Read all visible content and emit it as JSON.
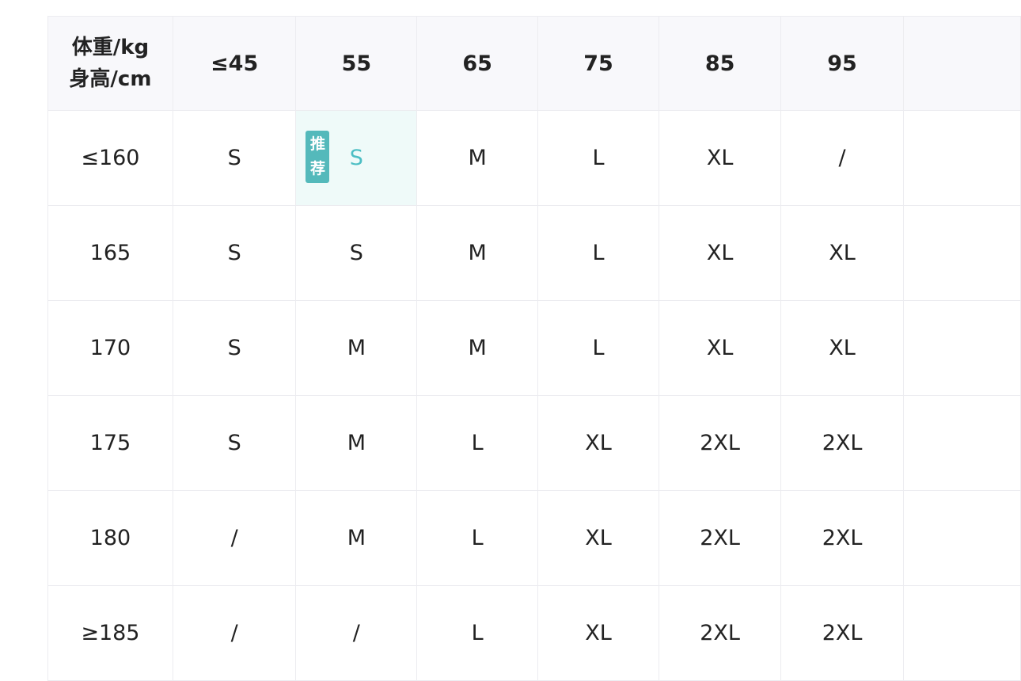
{
  "table": {
    "corner": [
      "体重/kg",
      "身高/cm"
    ],
    "weights": [
      "≤45",
      "55",
      "65",
      "75",
      "85",
      "95",
      ""
    ],
    "rows": [
      {
        "height": "≤160",
        "sizes": [
          "S",
          "S",
          "M",
          "L",
          "XL",
          "/",
          ""
        ]
      },
      {
        "height": "165",
        "sizes": [
          "S",
          "S",
          "M",
          "L",
          "XL",
          "XL",
          ""
        ]
      },
      {
        "height": "170",
        "sizes": [
          "S",
          "M",
          "M",
          "L",
          "XL",
          "XL",
          ""
        ]
      },
      {
        "height": "175",
        "sizes": [
          "S",
          "M",
          "L",
          "XL",
          "2XL",
          "2XL",
          ""
        ]
      },
      {
        "height": "180",
        "sizes": [
          "/",
          "M",
          "L",
          "XL",
          "2XL",
          "2XL",
          ""
        ]
      },
      {
        "height": "≥185",
        "sizes": [
          "/",
          "/",
          "L",
          "XL",
          "2XL",
          "2XL",
          ""
        ]
      }
    ],
    "recommended": {
      "row": 0,
      "col": 1,
      "badge": "推荐"
    }
  },
  "colors": {
    "accent": "#54b9bb",
    "recommended_bg": "#effaf9",
    "header_bg": "#f8f8fb",
    "border": "#ececf0"
  }
}
